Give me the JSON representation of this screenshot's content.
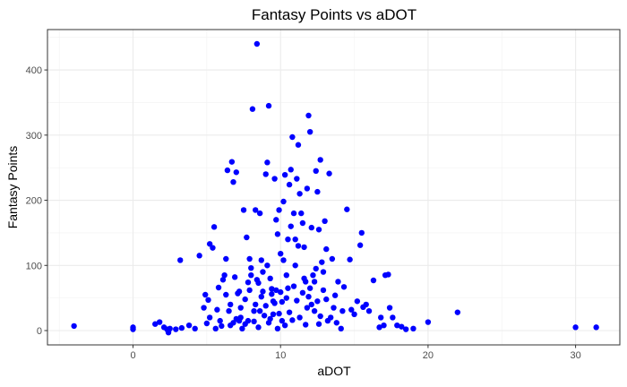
{
  "chart_data": {
    "type": "scatter",
    "title": "Fantasy Points vs aDOT",
    "xlabel": "aDOT",
    "ylabel": "Fantasy Points",
    "xlim": [
      -5.8,
      33
    ],
    "ylim": [
      -22,
      462
    ],
    "x_ticks": [
      0,
      10,
      20,
      30
    ],
    "y_ticks": [
      0,
      100,
      200,
      300,
      400
    ],
    "grid": true,
    "legend": "none",
    "point_color": "#0000ff",
    "points": [
      [
        -4,
        7
      ],
      [
        0,
        5
      ],
      [
        0,
        2
      ],
      [
        1.5,
        10
      ],
      [
        1.8,
        13
      ],
      [
        2.1,
        5
      ],
      [
        2.3,
        2
      ],
      [
        2.4,
        -3
      ],
      [
        2.5,
        3
      ],
      [
        2.9,
        2
      ],
      [
        3.2,
        108
      ],
      [
        3.3,
        4
      ],
      [
        3.8,
        8
      ],
      [
        4.2,
        3
      ],
      [
        4.5,
        115
      ],
      [
        4.8,
        35
      ],
      [
        4.9,
        55
      ],
      [
        5.0,
        11
      ],
      [
        5.1,
        47
      ],
      [
        5.2,
        133
      ],
      [
        5.4,
        127
      ],
      [
        5.5,
        159
      ],
      [
        5.6,
        3
      ],
      [
        5.7,
        32
      ],
      [
        5.8,
        66
      ],
      [
        5.9,
        15
      ],
      [
        6.0,
        7
      ],
      [
        6.1,
        78
      ],
      [
        6.2,
        85
      ],
      [
        6.3,
        110
      ],
      [
        6.4,
        246
      ],
      [
        6.5,
        30
      ],
      [
        6.6,
        8
      ],
      [
        6.7,
        259
      ],
      [
        6.8,
        228
      ],
      [
        6.9,
        82
      ],
      [
        7.0,
        243
      ],
      [
        7.1,
        57
      ],
      [
        7.2,
        15
      ],
      [
        7.3,
        20
      ],
      [
        7.4,
        3
      ],
      [
        7.5,
        185
      ],
      [
        7.6,
        10
      ],
      [
        7.7,
        143
      ],
      [
        7.8,
        74
      ],
      [
        7.9,
        110
      ],
      [
        8.0,
        96
      ],
      [
        8.1,
        340
      ],
      [
        8.2,
        30
      ],
      [
        8.3,
        185
      ],
      [
        8.4,
        440
      ],
      [
        8.5,
        73
      ],
      [
        8.6,
        180
      ],
      [
        8.7,
        108
      ],
      [
        8.8,
        90
      ],
      [
        8.9,
        23
      ],
      [
        9.0,
        240
      ],
      [
        9.1,
        258
      ],
      [
        9.2,
        345
      ],
      [
        9.3,
        80
      ],
      [
        9.4,
        56
      ],
      [
        9.5,
        25
      ],
      [
        9.6,
        233
      ],
      [
        9.7,
        170
      ],
      [
        9.8,
        148
      ],
      [
        9.9,
        185
      ],
      [
        10.0,
        59
      ],
      [
        10.1,
        15
      ],
      [
        10.2,
        198
      ],
      [
        10.3,
        239
      ],
      [
        10.4,
        85
      ],
      [
        10.5,
        65
      ],
      [
        10.6,
        224
      ],
      [
        10.7,
        247
      ],
      [
        10.8,
        297
      ],
      [
        10.9,
        180
      ],
      [
        11.0,
        140
      ],
      [
        11.1,
        233
      ],
      [
        11.2,
        285
      ],
      [
        11.3,
        210
      ],
      [
        11.4,
        180
      ],
      [
        11.5,
        165
      ],
      [
        11.6,
        128
      ],
      [
        11.7,
        75
      ],
      [
        11.8,
        218
      ],
      [
        11.9,
        330
      ],
      [
        12.0,
        305
      ],
      [
        12.1,
        158
      ],
      [
        12.2,
        85
      ],
      [
        12.3,
        30
      ],
      [
        12.4,
        245
      ],
      [
        12.5,
        213
      ],
      [
        12.6,
        155
      ],
      [
        12.7,
        262
      ],
      [
        12.8,
        105
      ],
      [
        12.9,
        90
      ],
      [
        13.0,
        168
      ],
      [
        13.1,
        125
      ],
      [
        13.2,
        15
      ],
      [
        13.3,
        241
      ],
      [
        13.5,
        110
      ],
      [
        13.7,
        54
      ],
      [
        13.9,
        75
      ],
      [
        14.1,
        3
      ],
      [
        14.3,
        67
      ],
      [
        14.5,
        186
      ],
      [
        14.7,
        109
      ],
      [
        14.8,
        32
      ],
      [
        15.0,
        25
      ],
      [
        15.2,
        45
      ],
      [
        15.4,
        131
      ],
      [
        15.5,
        150
      ],
      [
        15.6,
        36
      ],
      [
        15.8,
        40
      ],
      [
        16.0,
        30
      ],
      [
        16.3,
        77
      ],
      [
        16.7,
        5
      ],
      [
        16.8,
        20
      ],
      [
        17.0,
        8
      ],
      [
        17.1,
        85
      ],
      [
        17.3,
        86
      ],
      [
        17.4,
        35
      ],
      [
        17.6,
        20
      ],
      [
        17.9,
        8
      ],
      [
        18.2,
        6
      ],
      [
        18.5,
        2
      ],
      [
        19.0,
        3
      ],
      [
        20.0,
        13
      ],
      [
        22.0,
        28
      ],
      [
        30.0,
        5
      ],
      [
        31.4,
        5
      ],
      [
        5.2,
        20
      ],
      [
        6.3,
        55
      ],
      [
        6.8,
        12
      ],
      [
        7.0,
        18
      ],
      [
        7.3,
        35
      ],
      [
        7.6,
        48
      ],
      [
        7.9,
        62
      ],
      [
        8.2,
        14
      ],
      [
        8.3,
        40
      ],
      [
        8.5,
        5
      ],
      [
        8.7,
        52
      ],
      [
        9.0,
        38
      ],
      [
        9.2,
        12
      ],
      [
        9.4,
        64
      ],
      [
        9.6,
        42
      ],
      [
        9.8,
        3
      ],
      [
        9.9,
        26
      ],
      [
        10.1,
        44
      ],
      [
        10.3,
        8
      ],
      [
        10.4,
        50
      ],
      [
        10.6,
        28
      ],
      [
        10.8,
        16
      ],
      [
        10.9,
        68
      ],
      [
        11.1,
        46
      ],
      [
        11.3,
        20
      ],
      [
        11.5,
        58
      ],
      [
        11.7,
        9
      ],
      [
        11.9,
        52
      ],
      [
        12.1,
        40
      ],
      [
        12.3,
        75
      ],
      [
        12.5,
        45
      ],
      [
        12.7,
        22
      ],
      [
        12.9,
        62
      ],
      [
        13.1,
        48
      ],
      [
        13.4,
        20
      ],
      [
        13.8,
        12
      ],
      [
        14.2,
        30
      ],
      [
        6.6,
        40
      ],
      [
        7.2,
        60
      ],
      [
        8.0,
        85
      ],
      [
        9.1,
        100
      ],
      [
        9.5,
        45
      ],
      [
        10.2,
        108
      ],
      [
        10.5,
        140
      ],
      [
        11.0,
        100
      ],
      [
        11.6,
        80
      ],
      [
        12.0,
        65
      ],
      [
        12.4,
        95
      ],
      [
        8.8,
        60
      ],
      [
        10.0,
        118
      ],
      [
        11.2,
        130
      ],
      [
        10.7,
        160
      ],
      [
        9.7,
        62
      ],
      [
        8.4,
        78
      ],
      [
        7.8,
        15
      ],
      [
        8.6,
        30
      ],
      [
        9.3,
        18
      ],
      [
        11.8,
        35
      ],
      [
        12.6,
        10
      ],
      [
        13.6,
        35
      ]
    ]
  }
}
